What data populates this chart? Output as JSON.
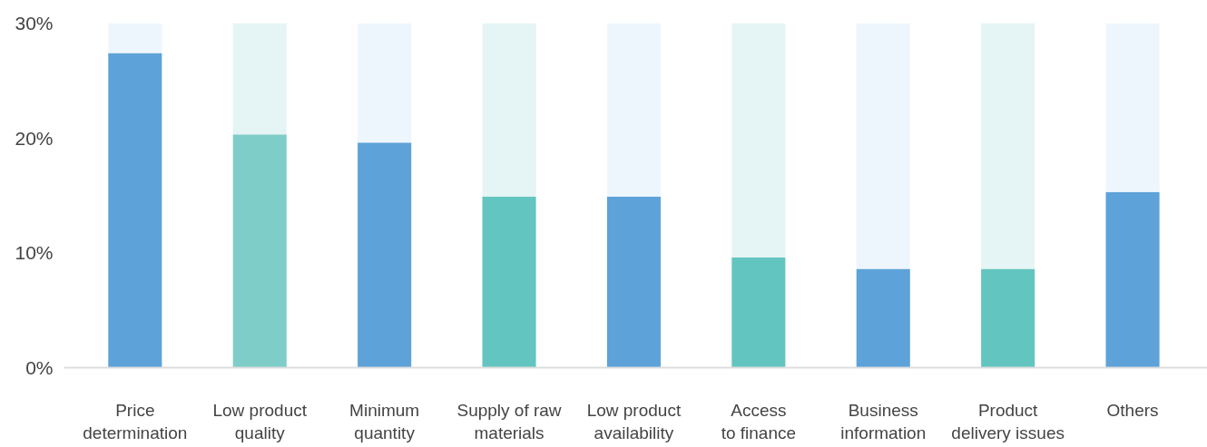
{
  "chart_data": {
    "type": "bar",
    "stacked": true,
    "categories": [
      "Price\ndetermination",
      "Low product\nquality",
      "Minimum\nquantity",
      "Supply of raw\nmaterials",
      "Low product\navailability",
      "Access\nto finance",
      "Business\ninformation",
      "Product\ndelivery issues",
      "Others"
    ],
    "series": [
      {
        "colors": [
          "#5da2d8",
          "#7ecdc8",
          "#5da2d8",
          "#63c5bf",
          "#5da2d8",
          "#63c5bf",
          "#5da2d8",
          "#63c5bf",
          "#5da2d8"
        ],
        "values": [
          27.4,
          20.3,
          19.6,
          14.9,
          14.9,
          9.6,
          8.6,
          8.6,
          15.3
        ]
      },
      {
        "colors": [
          "#eef6fd",
          "#e5f4f4",
          "#eef6fd",
          "#e5f4f4",
          "#eef6fd",
          "#e5f4f4",
          "#eef6fd",
          "#e5f4f4",
          "#eef6fd"
        ],
        "values": [
          2.6,
          9.7,
          10.4,
          15.1,
          15.1,
          20.4,
          21.4,
          21.4,
          14.7
        ]
      }
    ],
    "ylim": [
      0,
      30
    ],
    "yticks": [
      {
        "value": 0,
        "label": "0%"
      },
      {
        "value": 10,
        "label": "10%"
      },
      {
        "value": 20,
        "label": "20%"
      },
      {
        "value": 30,
        "label": "30%"
      }
    ],
    "grid": false
  }
}
